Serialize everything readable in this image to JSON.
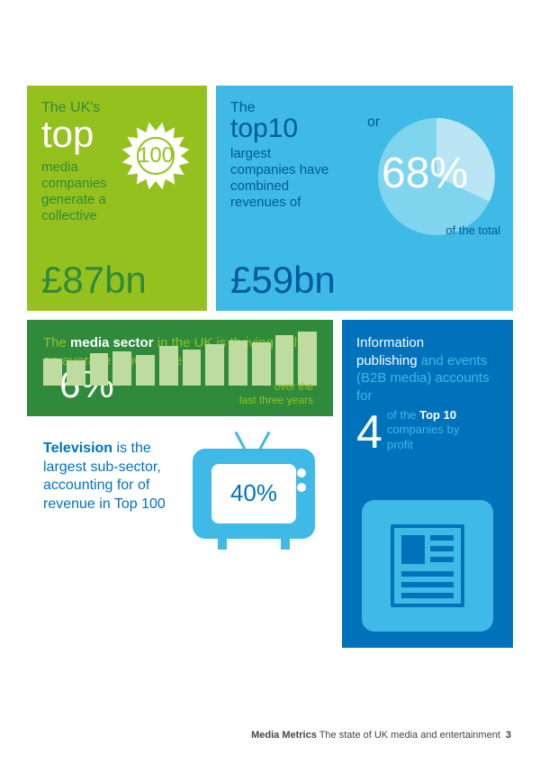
{
  "colors": {
    "green": "#95c11f",
    "greenDark": "#2f8a3c",
    "cyan": "#3fb9e5",
    "cyanLight": "#7fd4ee",
    "cyanPale": "#b9e5f4",
    "blue": "#0072bc",
    "blueDeep": "#005a9c",
    "white": "#ffffff",
    "barFill": "#bfdca0"
  },
  "card1": {
    "line1": "The UK's",
    "top": "top",
    "badge": "100",
    "body": "media companies generate a collective",
    "big": "£87bn"
  },
  "card2": {
    "line1": "The",
    "top10a": "top",
    "top10b": "10",
    "body": "largest companies have combined revenues of",
    "big": "£59bn",
    "pie": {
      "percent": 68,
      "or": "or",
      "pct": "68%",
      "of": "of the total"
    }
  },
  "card3": {
    "t_pre": "The ",
    "t_bold": "media sector",
    "t_post": " in the UK is thriving with an average growth rate of",
    "pct": "6%",
    "bars": [
      30,
      28,
      36,
      38,
      34,
      44,
      40,
      46,
      50,
      48,
      56,
      60
    ],
    "over1": "over the",
    "over2": "last three years"
  },
  "card4": {
    "l1a": "Information",
    "l1b": "publishing ",
    "l1c": "and events (B2B media) accounts for",
    "num": "4",
    "side_a": "of the ",
    "side_b": "Top 10",
    "side_c": "companies by profit"
  },
  "card5": {
    "t_bold": "Television",
    "t_rest": " is the largest sub-sector, accounting for of revenue in Top 100",
    "pct": "40%"
  },
  "footer": {
    "bold": "Media Metrics",
    "rest": " The state of UK media and entertainment",
    "page": "3"
  }
}
